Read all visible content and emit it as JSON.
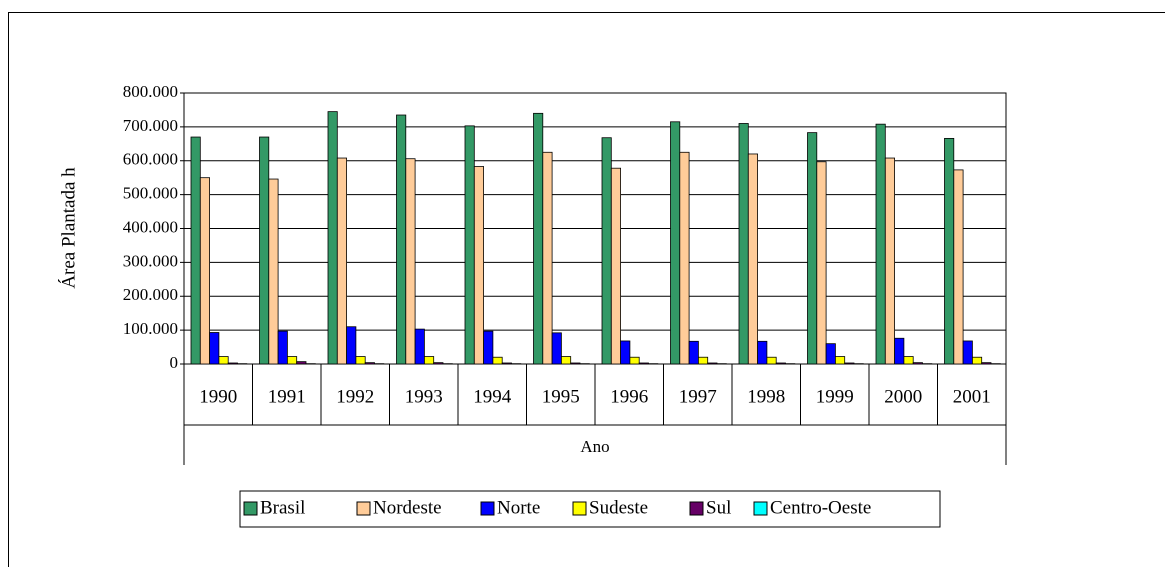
{
  "chart_data": {
    "type": "bar",
    "x_label": "Ano",
    "y_label": "Área Plantada h",
    "categories": [
      "1990",
      "1991",
      "1992",
      "1993",
      "1994",
      "1995",
      "1996",
      "1997",
      "1998",
      "1999",
      "2000",
      "2001"
    ],
    "series": [
      {
        "name": "Brasil",
        "color": "#339966",
        "values": [
          670000,
          670000,
          745000,
          735000,
          703000,
          740000,
          668000,
          715000,
          710000,
          683000,
          708000,
          666000
        ]
      },
      {
        "name": "Nordeste",
        "color": "#ffcc99",
        "values": [
          550000,
          546000,
          608000,
          606000,
          583000,
          625000,
          578000,
          625000,
          620000,
          597000,
          608000,
          573000
        ]
      },
      {
        "name": "Norte",
        "color": "#0000ff",
        "values": [
          93000,
          97000,
          110000,
          103000,
          97000,
          92000,
          68000,
          67000,
          67000,
          60000,
          76000,
          68000
        ]
      },
      {
        "name": "Sudeste",
        "color": "#ffff00",
        "values": [
          22000,
          22000,
          22000,
          22000,
          20000,
          22000,
          20000,
          20000,
          20000,
          22000,
          22000,
          20000
        ]
      },
      {
        "name": "Sul",
        "color": "#660066",
        "values": [
          3000,
          7000,
          4000,
          4000,
          3000,
          3000,
          3000,
          3000,
          3000,
          3000,
          4000,
          4000
        ]
      },
      {
        "name": "Centro-Oeste",
        "color": "#00ffff",
        "values": [
          1000,
          1000,
          1000,
          1000,
          1000,
          1000,
          1000,
          1000,
          1000,
          1000,
          1000,
          1000
        ]
      }
    ],
    "ylim": [
      0,
      800000
    ],
    "yticks": [
      0,
      {
        "value": 100000,
        "label": "100.000"
      },
      {
        "value": 200000,
        "label": "200.000"
      },
      {
        "value": 300000,
        "label": "300.000"
      },
      {
        "value": 400000,
        "label": "400.000"
      },
      {
        "value": 500000,
        "label": "500.000"
      },
      {
        "value": 600000,
        "label": "600.000"
      },
      {
        "value": 700000,
        "label": "700.000"
      },
      {
        "value": 800000,
        "label": "800.000"
      }
    ],
    "grid": true,
    "legend": "bottom"
  }
}
